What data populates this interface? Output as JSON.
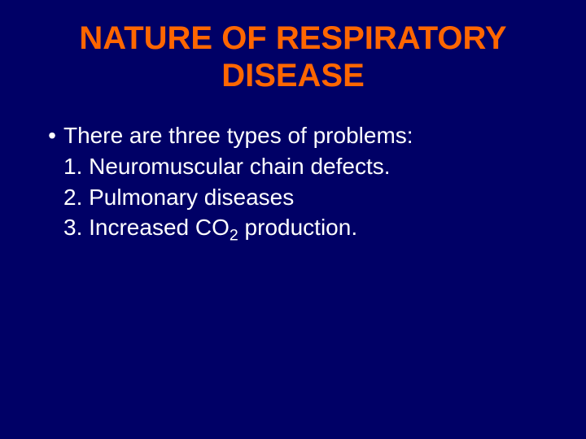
{
  "slide": {
    "title": "NATURE OF RESPIRATORY DISEASE",
    "bullet_char": "•",
    "intro": "There are three types of problems:",
    "items": [
      "1. Neuromuscular chain defects.",
      "2. Pulmonary diseases",
      "3. Increased CO",
      " production."
    ],
    "subscript": "2"
  },
  "style": {
    "background_color": "#000066",
    "title_color": "#ff6600",
    "text_color": "#ffffff",
    "title_fontsize": 40,
    "body_fontsize": 28,
    "font_family": "Arial"
  }
}
